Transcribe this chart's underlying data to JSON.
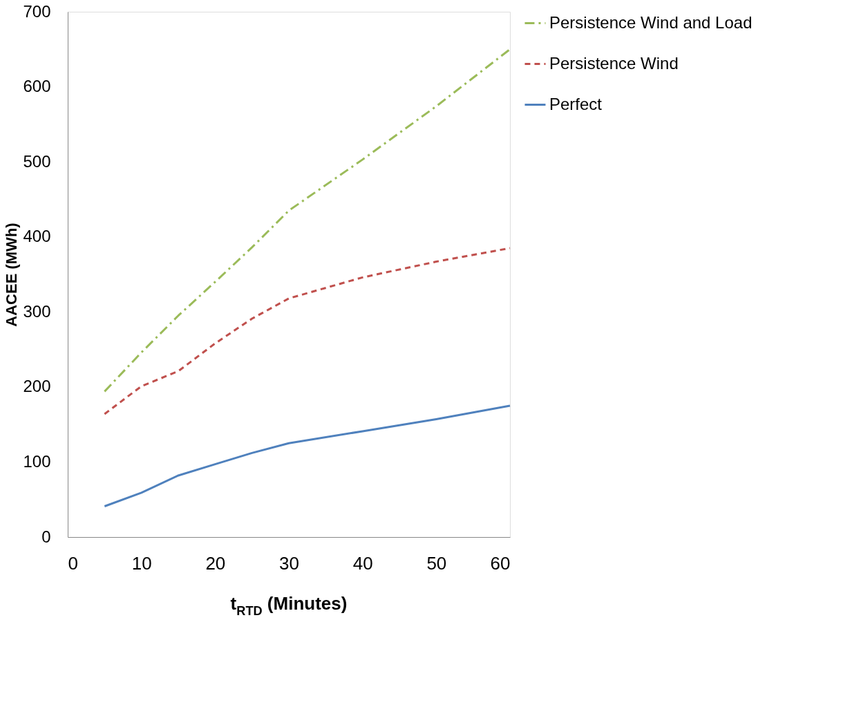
{
  "chart_data": {
    "type": "line",
    "xlabel": "t$_{RTD}$ (Minutes)",
    "ylabel": "AACEE (MWh)",
    "x": [
      5,
      10,
      15,
      20,
      25,
      30,
      40,
      50,
      60
    ],
    "series": [
      {
        "name": "Persistence Wind and Load",
        "color": "#9bbb59",
        "line_style": "dashdot",
        "values": [
          194,
          246,
          295,
          340,
          386,
          435,
          503,
          574,
          650
        ]
      },
      {
        "name": "Persistence Wind",
        "color": "#c0504d",
        "line_style": "dashed",
        "values": [
          164,
          201,
          221,
          258,
          291,
          318,
          346,
          367,
          385
        ]
      },
      {
        "name": "Perfect",
        "color": "#4f81bd",
        "line_style": "solid",
        "values": [
          41,
          59,
          82,
          97,
          112,
          125,
          141,
          157,
          175
        ]
      }
    ],
    "xlim": [
      0,
      60
    ],
    "xticks": [
      0,
      10,
      20,
      30,
      40,
      50,
      60
    ],
    "ylim": [
      0,
      700
    ],
    "yticks": [
      0,
      100,
      200,
      300,
      400,
      500,
      600,
      700
    ],
    "grid": false,
    "legend": "right",
    "marker": "none"
  }
}
